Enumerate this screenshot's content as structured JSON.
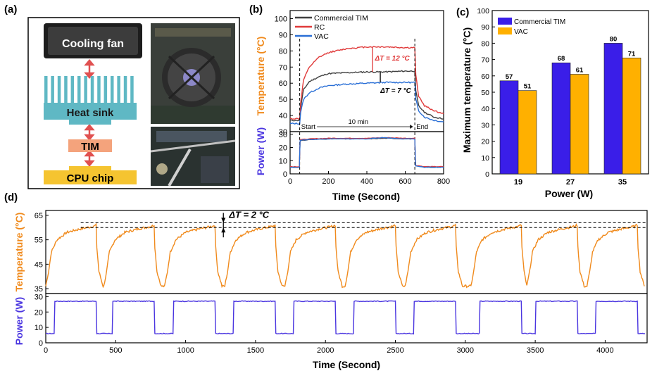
{
  "panels": {
    "a": {
      "label": "(a)",
      "parts": [
        "Cooling fan",
        "Heat sink",
        "TIM",
        "CPU chip"
      ],
      "colors": {
        "fan": "#2a2a2a",
        "heatsink": "#5fb8c4",
        "tim": "#f4a37c",
        "chip": "#f5c430",
        "arrow": "#e05050"
      }
    }
  },
  "chart_data": [
    {
      "id": "b",
      "label": "(b)",
      "type": "line",
      "xlabel": "Time (Second)",
      "xlim": [
        0,
        800
      ],
      "xticks": [
        0,
        200,
        400,
        600,
        800
      ],
      "top": {
        "ylabel": "Temperature (°C)",
        "ylim": [
          30,
          105
        ],
        "yticks": [
          30,
          40,
          50,
          60,
          70,
          80,
          90,
          100
        ],
        "series": [
          {
            "name": "Commercial TIM",
            "color": "#404040",
            "points": [
              [
                0,
                37
              ],
              [
                50,
                37
              ],
              [
                55,
                45
              ],
              [
                70,
                56
              ],
              [
                100,
                61
              ],
              [
                150,
                64
              ],
              [
                200,
                66
              ],
              [
                300,
                66.5
              ],
              [
                400,
                67
              ],
              [
                500,
                67
              ],
              [
                600,
                67.5
              ],
              [
                650,
                67.5
              ],
              [
                655,
                55
              ],
              [
                670,
                46
              ],
              [
                700,
                42
              ],
              [
                750,
                39
              ],
              [
                800,
                38
              ]
            ]
          },
          {
            "name": "RC",
            "color": "#e03a3a",
            "points": [
              [
                0,
                38
              ],
              [
                50,
                38
              ],
              [
                55,
                48
              ],
              [
                70,
                62
              ],
              [
                100,
                70
              ],
              [
                150,
                76
              ],
              [
                200,
                79
              ],
              [
                300,
                81.5
              ],
              [
                400,
                82.5
              ],
              [
                500,
                82.5
              ],
              [
                600,
                82
              ],
              [
                650,
                82
              ],
              [
                655,
                65
              ],
              [
                670,
                52
              ],
              [
                700,
                46
              ],
              [
                750,
                43
              ],
              [
                800,
                41
              ]
            ]
          },
          {
            "name": "VAC",
            "color": "#2a6fd6",
            "points": [
              [
                0,
                35
              ],
              [
                50,
                35
              ],
              [
                55,
                42
              ],
              [
                70,
                50
              ],
              [
                100,
                54
              ],
              [
                150,
                57
              ],
              [
                200,
                58.5
              ],
              [
                300,
                59.5
              ],
              [
                400,
                60
              ],
              [
                500,
                60.5
              ],
              [
                600,
                60.5
              ],
              [
                650,
                60.5
              ],
              [
                655,
                50
              ],
              [
                670,
                43
              ],
              [
                700,
                39
              ],
              [
                750,
                37
              ],
              [
                800,
                36
              ]
            ]
          }
        ],
        "annotations": [
          {
            "text": "ΔT = 12 °C",
            "color": "#e03a3a"
          },
          {
            "text": "ΔT = 7 °C",
            "color": "#000000"
          },
          {
            "text": "Start"
          },
          {
            "text": "10 min"
          },
          {
            "text": "End"
          }
        ]
      },
      "bottom": {
        "ylabel": "Power (W)",
        "ylim": [
          0,
          32
        ],
        "yticks": [
          0,
          10,
          20,
          30
        ],
        "series": [
          {
            "name": "Commercial TIM",
            "color": "#404040",
            "points": [
              [
                0,
                5
              ],
              [
                48,
                5
              ],
              [
                52,
                25
              ],
              [
                100,
                26
              ],
              [
                200,
                26.5
              ],
              [
                400,
                26.5
              ],
              [
                500,
                27
              ],
              [
                600,
                26.5
              ],
              [
                650,
                26.5
              ],
              [
                654,
                6
              ],
              [
                700,
                5
              ],
              [
                800,
                5
              ]
            ]
          },
          {
            "name": "RC",
            "color": "#e03a3a",
            "points": [
              [
                0,
                5.5
              ],
              [
                48,
                5.5
              ],
              [
                52,
                26
              ],
              [
                100,
                26.5
              ],
              [
                200,
                27
              ],
              [
                400,
                27
              ],
              [
                500,
                27.5
              ],
              [
                600,
                27
              ],
              [
                650,
                27
              ],
              [
                654,
                6.5
              ],
              [
                700,
                5.5
              ],
              [
                800,
                5.5
              ]
            ]
          },
          {
            "name": "VAC",
            "color": "#2a6fd6",
            "points": [
              [
                0,
                5
              ],
              [
                48,
                5
              ],
              [
                52,
                25.5
              ],
              [
                100,
                26
              ],
              [
                200,
                26.5
              ],
              [
                400,
                26.5
              ],
              [
                480,
                27.5
              ],
              [
                600,
                26.5
              ],
              [
                650,
                26.5
              ],
              [
                654,
                6
              ],
              [
                700,
                5
              ],
              [
                800,
                5
              ]
            ]
          }
        ]
      }
    },
    {
      "id": "c",
      "label": "(c)",
      "type": "bar",
      "xlabel": "Power (W)",
      "ylabel": "Maximum temperature (°C)",
      "ylim": [
        0,
        100
      ],
      "yticks": [
        0,
        10,
        20,
        30,
        40,
        50,
        60,
        70,
        80,
        90,
        100
      ],
      "categories": [
        "19",
        "27",
        "35"
      ],
      "series": [
        {
          "name": "Commercial TIM",
          "color": "#3a1ee8",
          "values": [
            57,
            68,
            80
          ]
        },
        {
          "name": "VAC",
          "color": "#ffb000",
          "values": [
            51,
            61,
            71
          ]
        }
      ],
      "value_labels": [
        [
          "57",
          "68",
          "80"
        ],
        [
          "51",
          "61",
          "71"
        ]
      ]
    },
    {
      "id": "d",
      "label": "(d)",
      "type": "line",
      "xlabel": "Time (Second)",
      "xlim": [
        0,
        4300
      ],
      "xticks": [
        0,
        500,
        1000,
        1500,
        2000,
        2500,
        3000,
        3500,
        4000
      ],
      "cycle_starts": [
        0,
        415,
        850,
        1280,
        1710,
        2140,
        2570,
        3040,
        3440,
        3870
      ],
      "top": {
        "ylabel": "Temperature (°C)",
        "ylim": [
          33,
          67
        ],
        "yticks": [
          35,
          45,
          55,
          65
        ],
        "color": "#f08a1c",
        "cycle_profile": [
          [
            0,
            36
          ],
          [
            20,
            42
          ],
          [
            40,
            50
          ],
          [
            80,
            55
          ],
          [
            150,
            58
          ],
          [
            250,
            59.5
          ],
          [
            340,
            60.5
          ],
          [
            360,
            61
          ],
          [
            365,
            52
          ],
          [
            380,
            42
          ],
          [
            410,
            36
          ]
        ],
        "reference_lines": [
          60,
          62
        ],
        "annotations": [
          {
            "text": "ΔT = 2 °C"
          }
        ]
      },
      "bottom": {
        "ylabel": "Power (W)",
        "ylim": [
          0,
          32
        ],
        "yticks": [
          0,
          10,
          20,
          30
        ],
        "color": "#4a35e0",
        "cycle_profile": [
          [
            0,
            6
          ],
          [
            60,
            6
          ],
          [
            65,
            27
          ],
          [
            360,
            27
          ],
          [
            365,
            6
          ],
          [
            415,
            6
          ]
        ]
      }
    }
  ]
}
